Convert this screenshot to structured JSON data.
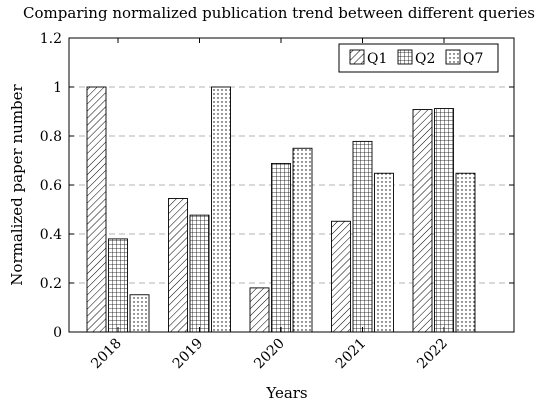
{
  "chart_data": {
    "type": "bar",
    "title": "Comparing normalized publication trend between different queries",
    "xlabel": "Years",
    "ylabel": "Normalized paper number",
    "categories": [
      "2018",
      "2019",
      "2020",
      "2021",
      "2022"
    ],
    "series": [
      {
        "name": "Q1",
        "pattern": "diagonal-hatch",
        "values": [
          1.0,
          0.545,
          0.18,
          0.452,
          0.908
        ]
      },
      {
        "name": "Q2",
        "pattern": "grid",
        "values": [
          0.38,
          0.477,
          0.688,
          0.778,
          0.912
        ]
      },
      {
        "name": "Q7",
        "pattern": "dots",
        "values": [
          0.152,
          1.0,
          0.75,
          0.648,
          0.648
        ]
      }
    ],
    "ylim": [
      0,
      1.2
    ],
    "yticks": [
      "0",
      "0.2",
      "0.4",
      "0.6",
      "0.8",
      "1",
      "1.2"
    ],
    "grid": "horizontal dashed",
    "legend_position": "top-right",
    "colors": {
      "stroke": "#000000",
      "fill": "#ffffff",
      "grid": "#b3b3b3"
    }
  }
}
